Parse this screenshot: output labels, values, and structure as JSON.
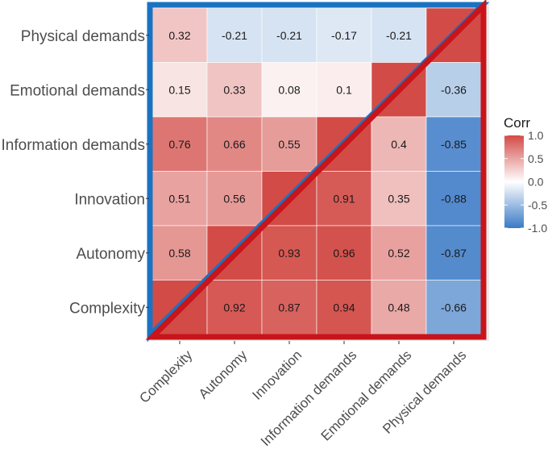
{
  "chart_data": {
    "type": "heatmap",
    "title": "",
    "xlabel": "",
    "ylabel": "",
    "x_categories": [
      "Complexity",
      "Autonomy",
      "Innovation",
      "Information demands",
      "Emotional demands",
      "Physical demands"
    ],
    "y_categories": [
      "Physical demands",
      "Emotional demands",
      "Information demands",
      "Innovation",
      "Autonomy",
      "Complexity"
    ],
    "cells": [
      {
        "x": "Complexity",
        "y": "Physical demands",
        "value": 0.32,
        "label": "0.32"
      },
      {
        "x": "Autonomy",
        "y": "Physical demands",
        "value": -0.21,
        "label": "-0.21"
      },
      {
        "x": "Innovation",
        "y": "Physical demands",
        "value": -0.21,
        "label": "-0.21"
      },
      {
        "x": "Information demands",
        "y": "Physical demands",
        "value": -0.17,
        "label": "-0.17"
      },
      {
        "x": "Emotional demands",
        "y": "Physical demands",
        "value": -0.21,
        "label": "-0.21"
      },
      {
        "x": "Physical demands",
        "y": "Physical demands",
        "value": 1.0,
        "label": ""
      },
      {
        "x": "Complexity",
        "y": "Emotional demands",
        "value": 0.15,
        "label": "0.15"
      },
      {
        "x": "Autonomy",
        "y": "Emotional demands",
        "value": 0.33,
        "label": "0.33"
      },
      {
        "x": "Innovation",
        "y": "Emotional demands",
        "value": 0.08,
        "label": "0.08"
      },
      {
        "x": "Information demands",
        "y": "Emotional demands",
        "value": 0.1,
        "label": "0.1"
      },
      {
        "x": "Emotional demands",
        "y": "Emotional demands",
        "value": 1.0,
        "label": ""
      },
      {
        "x": "Physical demands",
        "y": "Emotional demands",
        "value": -0.36,
        "label": "-0.36"
      },
      {
        "x": "Complexity",
        "y": "Information demands",
        "value": 0.76,
        "label": "0.76"
      },
      {
        "x": "Autonomy",
        "y": "Information demands",
        "value": 0.66,
        "label": "0.66"
      },
      {
        "x": "Innovation",
        "y": "Information demands",
        "value": 0.55,
        "label": "0.55"
      },
      {
        "x": "Information demands",
        "y": "Information demands",
        "value": 1.0,
        "label": ""
      },
      {
        "x": "Emotional demands",
        "y": "Information demands",
        "value": 0.4,
        "label": "0.4"
      },
      {
        "x": "Physical demands",
        "y": "Information demands",
        "value": -0.85,
        "label": "-0.85"
      },
      {
        "x": "Complexity",
        "y": "Innovation",
        "value": 0.51,
        "label": "0.51"
      },
      {
        "x": "Autonomy",
        "y": "Innovation",
        "value": 0.56,
        "label": "0.56"
      },
      {
        "x": "Innovation",
        "y": "Innovation",
        "value": 1.0,
        "label": ""
      },
      {
        "x": "Information demands",
        "y": "Innovation",
        "value": 0.91,
        "label": "0.91"
      },
      {
        "x": "Emotional demands",
        "y": "Innovation",
        "value": 0.35,
        "label": "0.35"
      },
      {
        "x": "Physical demands",
        "y": "Innovation",
        "value": -0.88,
        "label": "-0.88"
      },
      {
        "x": "Complexity",
        "y": "Autonomy",
        "value": 0.58,
        "label": "0.58"
      },
      {
        "x": "Autonomy",
        "y": "Autonomy",
        "value": 1.0,
        "label": ""
      },
      {
        "x": "Innovation",
        "y": "Autonomy",
        "value": 0.93,
        "label": "0.93"
      },
      {
        "x": "Information demands",
        "y": "Autonomy",
        "value": 0.96,
        "label": "0.96"
      },
      {
        "x": "Emotional demands",
        "y": "Autonomy",
        "value": 0.52,
        "label": "0.52"
      },
      {
        "x": "Physical demands",
        "y": "Autonomy",
        "value": -0.87,
        "label": "-0.87"
      },
      {
        "x": "Complexity",
        "y": "Complexity",
        "value": 1.0,
        "label": ""
      },
      {
        "x": "Autonomy",
        "y": "Complexity",
        "value": 0.92,
        "label": "0.92"
      },
      {
        "x": "Innovation",
        "y": "Complexity",
        "value": 0.87,
        "label": "0.87"
      },
      {
        "x": "Information demands",
        "y": "Complexity",
        "value": 0.94,
        "label": "0.94"
      },
      {
        "x": "Emotional demands",
        "y": "Complexity",
        "value": 0.48,
        "label": "0.48"
      },
      {
        "x": "Physical demands",
        "y": "Complexity",
        "value": -0.66,
        "label": "-0.66"
      }
    ],
    "color_scale": {
      "low": "#3a7ac6",
      "mid": "#ffffff",
      "high": "#d24b46",
      "min": -1.0,
      "max": 1.0
    },
    "legend": {
      "title": "Corr",
      "position": "right",
      "ticks": [
        {
          "value": 1.0,
          "label": "1.0"
        },
        {
          "value": 0.5,
          "label": "0.5"
        },
        {
          "value": 0.0,
          "label": "0.0"
        },
        {
          "value": -0.5,
          "label": "-0.5"
        },
        {
          "value": -1.0,
          "label": "-1.0"
        }
      ]
    },
    "annotations": [
      {
        "type": "triangle-outline",
        "region": "upper-left",
        "color": "#1a73c2"
      },
      {
        "type": "triangle-outline",
        "region": "lower-right",
        "color": "#c8141a"
      }
    ]
  }
}
